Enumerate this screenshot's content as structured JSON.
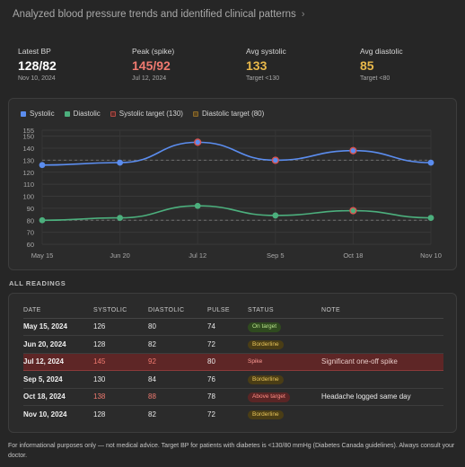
{
  "header": {
    "title": "Analyzed blood pressure trends and identified clinical patterns"
  },
  "stats": [
    {
      "label": "Latest BP",
      "value": "128/82",
      "sub": "Nov 10, 2024",
      "color": "#ffffff"
    },
    {
      "label": "Peak (spike)",
      "value": "145/92",
      "sub": "Jul 12, 2024",
      "color": "#f07a70"
    },
    {
      "label": "Avg systolic",
      "value": "133",
      "sub": "Target <130",
      "color": "#e8b84a"
    },
    {
      "label": "Avg diastolic",
      "value": "85",
      "sub": "Target <80",
      "color": "#e8b84a"
    }
  ],
  "chart_data": {
    "type": "line",
    "categories": [
      "May 15",
      "Jun 20",
      "Jul 12",
      "Sep 5",
      "Oct 18",
      "Nov 10"
    ],
    "series": [
      {
        "name": "Systolic",
        "values": [
          126,
          128,
          145,
          130,
          138,
          128
        ],
        "color": "#5b8def"
      },
      {
        "name": "Diastolic",
        "values": [
          80,
          82,
          92,
          84,
          88,
          82
        ],
        "color": "#4caf7d"
      }
    ],
    "targets": [
      {
        "name": "Systolic target (130)",
        "value": 130,
        "color": "#b04a44"
      },
      {
        "name": "Diastolic target (80)",
        "value": 80,
        "color": "#8a6a2a"
      }
    ],
    "highlight_points": [
      {
        "series": 0,
        "index": 2
      },
      {
        "series": 0,
        "index": 3
      },
      {
        "series": 0,
        "index": 4
      },
      {
        "series": 1,
        "index": 4
      }
    ],
    "ylim": [
      60,
      155
    ],
    "yticks": [
      60,
      70,
      80,
      90,
      100,
      110,
      120,
      130,
      140,
      150,
      155
    ],
    "grid": true,
    "legend": "top-left"
  },
  "readings": {
    "title": "ALL READINGS",
    "columns": [
      "DATE",
      "SYSTOLIC",
      "DIASTOLIC",
      "PULSE",
      "STATUS",
      "NOTE"
    ],
    "rows": [
      {
        "date": "May 15, 2024",
        "sys": "126",
        "dia": "80",
        "pulse": "74",
        "status": "On target",
        "kind": "good",
        "note": ""
      },
      {
        "date": "Jun 20, 2024",
        "sys": "128",
        "dia": "82",
        "pulse": "72",
        "status": "Borderline",
        "kind": "warn",
        "note": ""
      },
      {
        "date": "Jul 12, 2024",
        "sys": "145",
        "dia": "92",
        "pulse": "80",
        "status": "Spike",
        "kind": "spike",
        "note": "Significant one-off spike"
      },
      {
        "date": "Sep 5, 2024",
        "sys": "130",
        "dia": "84",
        "pulse": "76",
        "status": "Borderline",
        "kind": "warn",
        "note": ""
      },
      {
        "date": "Oct 18, 2024",
        "sys": "138",
        "dia": "88",
        "pulse": "78",
        "status": "Above target",
        "kind": "bad",
        "note": "Headache logged same day"
      },
      {
        "date": "Nov 10, 2024",
        "sys": "128",
        "dia": "82",
        "pulse": "72",
        "status": "Borderline",
        "kind": "warn",
        "note": ""
      }
    ]
  },
  "footer": "For informational purposes only — not medical advice. Target BP for patients with diabetes is <130/80 mmHg (Diabetes Canada guidelines). Always consult your doctor."
}
